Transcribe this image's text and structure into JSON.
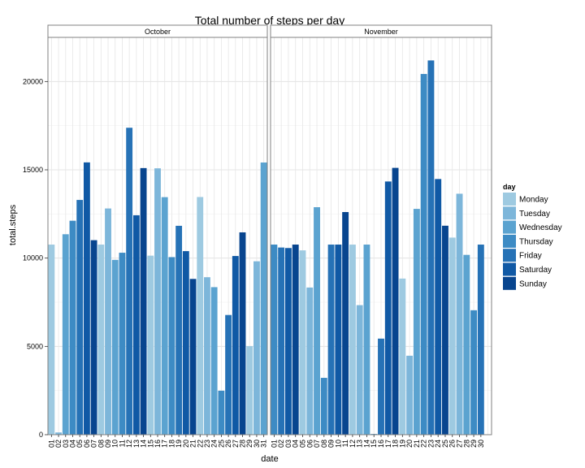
{
  "chart_data": {
    "type": "bar",
    "title": "Total number of steps per day",
    "xlabel": "date",
    "ylabel": "total.steps",
    "ylim": [
      0,
      22500
    ],
    "yticks": [
      0,
      5000,
      10000,
      15000,
      20000
    ],
    "grid": true,
    "legend": {
      "title": "day",
      "placement": "right",
      "entries": [
        {
          "name": "Monday",
          "color": "#9ecae1"
        },
        {
          "name": "Tuesday",
          "color": "#7db6da"
        },
        {
          "name": "Wednesday",
          "color": "#5ba3d0"
        },
        {
          "name": "Thursday",
          "color": "#3d8bc4"
        },
        {
          "name": "Friday",
          "color": "#2672b6"
        },
        {
          "name": "Saturday",
          "color": "#1059a5"
        },
        {
          "name": "Sunday",
          "color": "#08458f"
        }
      ]
    },
    "panels": [
      {
        "name": "October",
        "dates": [
          "01",
          "02",
          "03",
          "04",
          "05",
          "06",
          "07",
          "08",
          "09",
          "10",
          "11",
          "12",
          "13",
          "14",
          "15",
          "16",
          "17",
          "18",
          "19",
          "20",
          "21",
          "22",
          "23",
          "24",
          "25",
          "26",
          "27",
          "28",
          "29",
          "30",
          "31"
        ],
        "weekdays": [
          "Monday",
          "Tuesday",
          "Wednesday",
          "Thursday",
          "Friday",
          "Saturday",
          "Sunday",
          "Monday",
          "Tuesday",
          "Wednesday",
          "Thursday",
          "Friday",
          "Saturday",
          "Sunday",
          "Monday",
          "Tuesday",
          "Wednesday",
          "Thursday",
          "Friday",
          "Saturday",
          "Sunday",
          "Monday",
          "Tuesday",
          "Wednesday",
          "Thursday",
          "Friday",
          "Saturday",
          "Sunday",
          "Monday",
          "Tuesday",
          "Wednesday"
        ],
        "values": [
          10766,
          126,
          11352,
          12116,
          13294,
          15420,
          11015,
          10766,
          12811,
          9900,
          10304,
          17382,
          12426,
          15098,
          10139,
          15084,
          13452,
          10056,
          11829,
          10395,
          8821,
          13460,
          8918,
          8355,
          2492,
          6778,
          10119,
          11458,
          5018,
          9819,
          15414
        ]
      },
      {
        "name": "November",
        "dates": [
          "01",
          "02",
          "03",
          "04",
          "05",
          "06",
          "07",
          "08",
          "09",
          "10",
          "11",
          "12",
          "13",
          "14",
          "15",
          "16",
          "17",
          "18",
          "19",
          "20",
          "21",
          "22",
          "23",
          "24",
          "25",
          "26",
          "27",
          "28",
          "29",
          "30"
        ],
        "weekdays": [
          "Thursday",
          "Friday",
          "Saturday",
          "Sunday",
          "Monday",
          "Tuesday",
          "Wednesday",
          "Thursday",
          "Friday",
          "Saturday",
          "Sunday",
          "Monday",
          "Tuesday",
          "Wednesday",
          "Thursday",
          "Friday",
          "Saturday",
          "Sunday",
          "Monday",
          "Tuesday",
          "Wednesday",
          "Thursday",
          "Friday",
          "Saturday",
          "Sunday",
          "Monday",
          "Tuesday",
          "Wednesday",
          "Thursday",
          "Friday"
        ],
        "values": [
          10766,
          10600,
          10571,
          10766,
          10439,
          8334,
          12883,
          3219,
          10766,
          10766,
          12608,
          10765,
          7336,
          10766,
          41,
          5441,
          14339,
          15110,
          8841,
          4472,
          12787,
          20427,
          21194,
          14478,
          11834,
          11162,
          13646,
          10183,
          7047,
          10766
        ]
      }
    ]
  }
}
